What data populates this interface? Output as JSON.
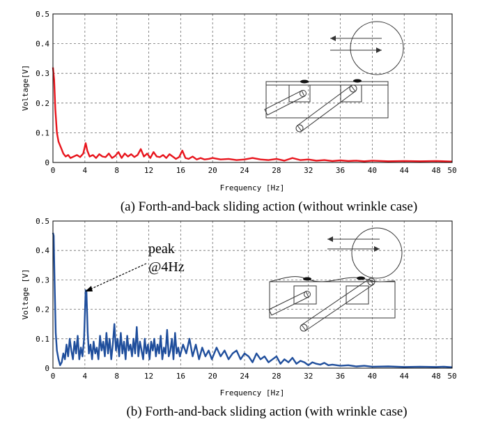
{
  "chart_data": [
    {
      "type": "line",
      "caption": "(a) Forth-and-back sliding action (without wrinkle case)",
      "xlabel": "Frequency [Hz]",
      "ylabel": "Voltage[V]",
      "xlim": [
        0,
        50
      ],
      "ylim": [
        0,
        0.5
      ],
      "xticks": [
        0,
        4,
        8,
        12,
        16,
        20,
        24,
        28,
        32,
        36,
        40,
        44,
        48,
        50
      ],
      "xtick_labels": [
        "0",
        "4",
        "8",
        "12",
        "16",
        "20",
        "24",
        "28",
        "32",
        "36",
        "40",
        "44",
        "48",
        "50"
      ],
      "yticks": [
        0,
        0.1,
        0.2,
        0.3,
        0.4,
        0.5
      ],
      "ytick_labels": [
        "0",
        "0.1",
        "0.2",
        "0.3",
        "0.4",
        "0.5"
      ],
      "grid": true,
      "series": [
        {
          "color": "#e8141c",
          "x": [
            0,
            0.15,
            0.3,
            0.5,
            0.7,
            1.0,
            1.3,
            1.6,
            1.9,
            2.2,
            2.6,
            3.0,
            3.4,
            3.8,
            4.1,
            4.3,
            4.6,
            5.0,
            5.4,
            5.8,
            6.2,
            6.6,
            7.0,
            7.4,
            7.8,
            8.2,
            8.6,
            9.0,
            9.4,
            9.8,
            10.2,
            10.6,
            11.0,
            11.4,
            11.8,
            12.2,
            12.6,
            13.0,
            13.4,
            13.8,
            14.2,
            14.6,
            15.0,
            15.4,
            15.8,
            16.2,
            16.6,
            17.0,
            17.5,
            18.0,
            18.5,
            19.0,
            19.5,
            20.0,
            21.0,
            22.0,
            23.0,
            24.0,
            25.0,
            26.0,
            27.0,
            28.0,
            29.0,
            30.0,
            31.0,
            32.0,
            33.0,
            34.0,
            35.0,
            36.0,
            37.0,
            38.0,
            39.0,
            40.0,
            42.0,
            44.0,
            46.0,
            48.0,
            50.0
          ],
          "y": [
            0.32,
            0.28,
            0.18,
            0.1,
            0.07,
            0.05,
            0.03,
            0.02,
            0.025,
            0.015,
            0.02,
            0.025,
            0.018,
            0.03,
            0.065,
            0.04,
            0.02,
            0.025,
            0.015,
            0.028,
            0.02,
            0.018,
            0.03,
            0.015,
            0.022,
            0.035,
            0.015,
            0.03,
            0.02,
            0.028,
            0.018,
            0.025,
            0.045,
            0.02,
            0.03,
            0.015,
            0.035,
            0.02,
            0.018,
            0.025,
            0.015,
            0.028,
            0.02,
            0.012,
            0.018,
            0.04,
            0.015,
            0.012,
            0.02,
            0.01,
            0.015,
            0.01,
            0.012,
            0.015,
            0.01,
            0.012,
            0.008,
            0.01,
            0.015,
            0.01,
            0.008,
            0.012,
            0.006,
            0.015,
            0.008,
            0.01,
            0.006,
            0.008,
            0.005,
            0.007,
            0.005,
            0.006,
            0.004,
            0.006,
            0.004,
            0.005,
            0.004,
            0.005,
            0.003
          ]
        }
      ]
    },
    {
      "type": "line",
      "caption": "(b) Forth-and-back sliding action (with wrinkle case)",
      "xlabel": "Frequency [Hz]",
      "ylabel": "Voltage [V]",
      "xlim": [
        0,
        50
      ],
      "ylim": [
        0,
        0.5
      ],
      "xticks": [
        0,
        4,
        8,
        12,
        16,
        20,
        24,
        28,
        32,
        36,
        40,
        44,
        48,
        50
      ],
      "xtick_labels": [
        "0",
        "4",
        "8",
        "12",
        "16",
        "20",
        "24",
        "28",
        "32",
        "36",
        "40",
        "44",
        "48",
        "50"
      ],
      "yticks": [
        0,
        0.1,
        0.2,
        0.3,
        0.4,
        0.5
      ],
      "ytick_labels": [
        "0",
        "0.1",
        "0.2",
        "0.3",
        "0.4",
        "0.5"
      ],
      "grid": true,
      "annotations": [
        {
          "text": "peak",
          "text2": "@4Hz",
          "x": 4.1,
          "y": 0.265
        }
      ],
      "series": [
        {
          "color": "#1f4e9c",
          "x": [
            0,
            0.1,
            0.2,
            0.35,
            0.5,
            0.7,
            0.9,
            1.1,
            1.3,
            1.5,
            1.7,
            1.9,
            2.1,
            2.3,
            2.5,
            2.7,
            2.9,
            3.1,
            3.3,
            3.5,
            3.7,
            3.9,
            4.0,
            4.1,
            4.2,
            4.35,
            4.5,
            4.7,
            4.9,
            5.1,
            5.3,
            5.5,
            5.7,
            5.9,
            6.1,
            6.3,
            6.5,
            6.7,
            6.9,
            7.1,
            7.3,
            7.5,
            7.7,
            7.9,
            8.1,
            8.3,
            8.5,
            8.7,
            8.9,
            9.1,
            9.3,
            9.5,
            9.7,
            9.9,
            10.1,
            10.3,
            10.5,
            10.7,
            10.9,
            11.1,
            11.3,
            11.5,
            11.7,
            11.9,
            12.1,
            12.3,
            12.5,
            12.7,
            12.9,
            13.1,
            13.3,
            13.5,
            13.7,
            13.9,
            14.1,
            14.3,
            14.5,
            14.7,
            14.9,
            15.1,
            15.3,
            15.5,
            15.7,
            15.9,
            16.3,
            16.7,
            17.1,
            17.5,
            17.9,
            18.3,
            18.7,
            19.1,
            19.5,
            19.9,
            20.5,
            21.0,
            21.5,
            22.0,
            22.5,
            23.0,
            23.5,
            24.0,
            24.5,
            25.0,
            25.5,
            26.0,
            26.5,
            27.0,
            27.5,
            28.0,
            28.5,
            29.0,
            29.5,
            30.0,
            30.5,
            31.0,
            31.5,
            32.0,
            32.5,
            33.0,
            33.5,
            34.0,
            34.5,
            35.0,
            36.0,
            37.0,
            38.0,
            39.0,
            40.0,
            42.0,
            44.0,
            46.0,
            48.0,
            49.0,
            50.0
          ],
          "y": [
            0.46,
            0.45,
            0.3,
            0.12,
            0.06,
            0.03,
            0.01,
            0.02,
            0.05,
            0.03,
            0.08,
            0.04,
            0.1,
            0.06,
            0.03,
            0.09,
            0.05,
            0.11,
            0.03,
            0.07,
            0.04,
            0.1,
            0.18,
            0.265,
            0.26,
            0.12,
            0.05,
            0.08,
            0.03,
            0.09,
            0.05,
            0.07,
            0.03,
            0.11,
            0.06,
            0.09,
            0.04,
            0.12,
            0.05,
            0.1,
            0.03,
            0.08,
            0.15,
            0.06,
            0.1,
            0.04,
            0.12,
            0.05,
            0.09,
            0.03,
            0.11,
            0.06,
            0.08,
            0.04,
            0.1,
            0.05,
            0.14,
            0.04,
            0.09,
            0.06,
            0.03,
            0.1,
            0.05,
            0.08,
            0.03,
            0.09,
            0.06,
            0.1,
            0.04,
            0.08,
            0.05,
            0.11,
            0.03,
            0.07,
            0.05,
            0.13,
            0.04,
            0.06,
            0.1,
            0.03,
            0.12,
            0.05,
            0.07,
            0.04,
            0.08,
            0.05,
            0.1,
            0.04,
            0.08,
            0.03,
            0.07,
            0.04,
            0.06,
            0.03,
            0.07,
            0.04,
            0.06,
            0.03,
            0.05,
            0.06,
            0.03,
            0.05,
            0.04,
            0.02,
            0.05,
            0.03,
            0.04,
            0.02,
            0.03,
            0.04,
            0.015,
            0.03,
            0.02,
            0.035,
            0.015,
            0.025,
            0.02,
            0.01,
            0.02,
            0.015,
            0.012,
            0.018,
            0.01,
            0.012,
            0.008,
            0.01,
            0.006,
            0.008,
            0.005,
            0.006,
            0.004,
            0.005,
            0.004,
            0.005,
            0.003
          ]
        }
      ]
    }
  ]
}
